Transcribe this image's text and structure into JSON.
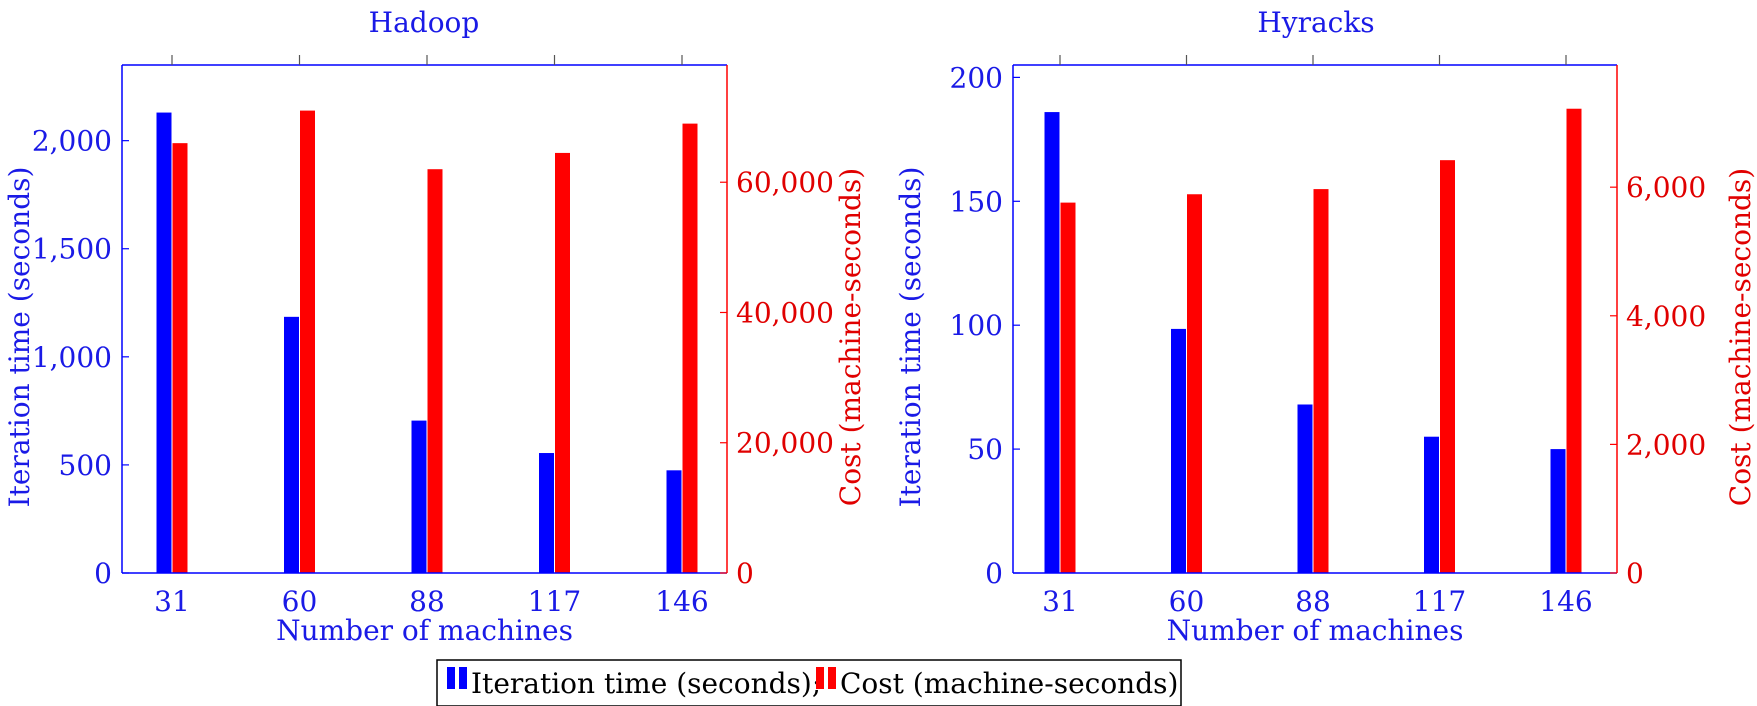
{
  "colors": {
    "primary": "#1a1ae6",
    "secondary": "#e00000",
    "bar_primary": "#0000ff",
    "bar_secondary": "#ff0000",
    "legend_border": "#000000"
  },
  "legend": {
    "entries": [
      "Iteration time (seconds);",
      "Cost (machine-seconds)"
    ]
  },
  "chart_data": [
    {
      "type": "bar",
      "title": "Hadoop",
      "xlabel": "Number of machines",
      "categories": [
        "31",
        "60",
        "88",
        "117",
        "146"
      ],
      "y_left": {
        "label": "Iteration time (seconds)",
        "lim": [
          0,
          2350
        ],
        "ticks": [
          0,
          500,
          1000,
          1500,
          2000
        ],
        "tick_labels": [
          "0",
          "500",
          "1,000",
          "1,500",
          "2,000"
        ]
      },
      "y_right": {
        "label": "Cost (machine-seconds)",
        "lim": [
          0,
          78000
        ],
        "ticks": [
          0,
          20000,
          40000,
          60000
        ],
        "tick_labels": [
          "0",
          "20,000",
          "40,000",
          "60,000"
        ]
      },
      "series": [
        {
          "name": "Iteration time (seconds)",
          "axis": "left",
          "values": [
            2130,
            1185,
            705,
            555,
            475
          ]
        },
        {
          "name": "Cost (machine-seconds)",
          "axis": "right",
          "values": [
            66000,
            71000,
            62000,
            64500,
            69000
          ]
        }
      ],
      "grid": false
    },
    {
      "type": "bar",
      "title": "Hyracks",
      "xlabel": "Number of machines",
      "categories": [
        "31",
        "60",
        "88",
        "117",
        "146"
      ],
      "y_left": {
        "label": "Iteration time (seconds)",
        "lim": [
          0,
          205
        ],
        "ticks": [
          0,
          50,
          100,
          150,
          200
        ],
        "tick_labels": [
          "0",
          "50",
          "100",
          "150",
          "200"
        ]
      },
      "y_right": {
        "label": "Cost (machine-seconds)",
        "lim": [
          0,
          7900
        ],
        "ticks": [
          0,
          2000,
          4000,
          6000
        ],
        "tick_labels": [
          "0",
          "2,000",
          "4,000",
          "6,000"
        ]
      },
      "series": [
        {
          "name": "Iteration time (seconds)",
          "axis": "left",
          "values": [
            186,
            98.5,
            68,
            55,
            50
          ]
        },
        {
          "name": "Cost (machine-seconds)",
          "axis": "right",
          "values": [
            5760,
            5890,
            5970,
            6420,
            7220
          ]
        }
      ],
      "grid": false
    }
  ]
}
